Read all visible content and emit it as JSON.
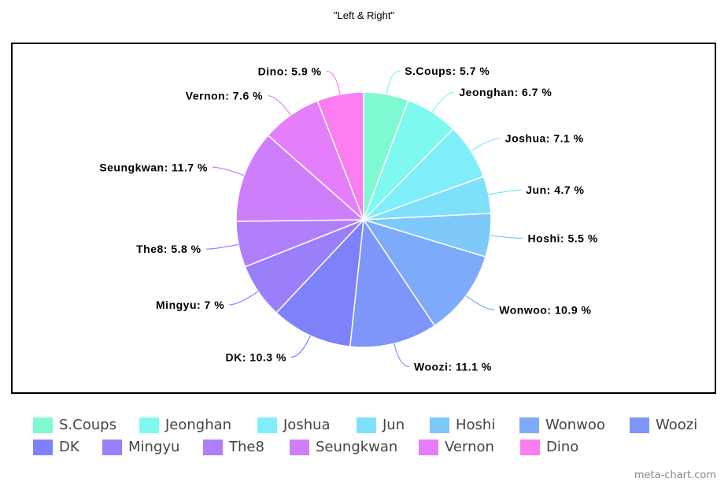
{
  "chart_data": {
    "type": "pie",
    "title": "\"Left & Right\"",
    "categories": [
      "S.Coups",
      "Jeonghan",
      "Joshua",
      "Jun",
      "Hoshi",
      "Wonwoo",
      "Woozi",
      "DK",
      "Mingyu",
      "The8",
      "Seungkwan",
      "Vernon",
      "Dino"
    ],
    "values": [
      5.7,
      6.7,
      7.1,
      4.7,
      5.5,
      10.9,
      11.1,
      10.3,
      7,
      5.8,
      11.7,
      7.6,
      5.9
    ],
    "labels": [
      "S.Coups: 5.7 %",
      "Jeonghan: 6.7 %",
      "Joshua: 7.1 %",
      "Jun: 4.7 %",
      "Hoshi: 5.5 %",
      "Wonwoo: 10.9 %",
      "Woozi: 11.1 %",
      "DK: 10.3 %",
      "Mingyu: 7 %",
      "The8: 5.8 %",
      "Seungkwan: 11.7 %",
      "Vernon: 7.6 %",
      "Dino: 5.9 %"
    ],
    "colors": [
      "#7ef9d2",
      "#7ef9ef",
      "#7eeefa",
      "#7ee0fa",
      "#7ec8fa",
      "#7eaafa",
      "#7e95fa",
      "#7e82fa",
      "#9a7efa",
      "#b07efa",
      "#ce7efa",
      "#e57efa",
      "#fa7ef0"
    ],
    "legend": "bottom"
  },
  "credit": "meta-chart.com"
}
